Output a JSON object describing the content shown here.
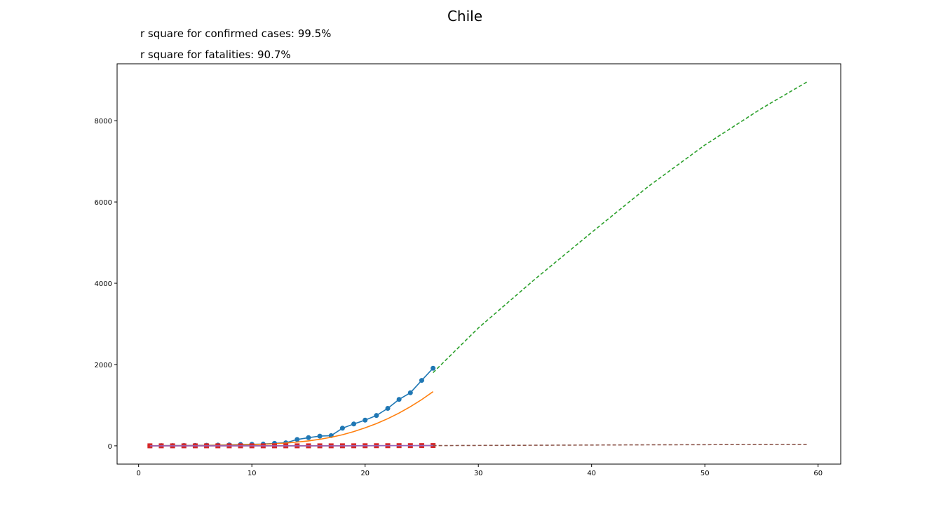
{
  "chart_data": {
    "type": "line",
    "title": "Chile",
    "annotations": [
      "r square for confirmed cases: 99.5%",
      "r square for fatalities: 90.7%"
    ],
    "xlabel": "",
    "ylabel": "",
    "xlim": [
      -1.9,
      62
    ],
    "ylim": [
      -450,
      9400
    ],
    "xticks": [
      0,
      10,
      20,
      30,
      40,
      50,
      60
    ],
    "yticks": [
      0,
      2000,
      4000,
      6000,
      8000
    ],
    "grid": false,
    "series": [
      {
        "role": "confirmed-observed",
        "color": "#1f77b4",
        "marker": "circle",
        "x": [
          1,
          2,
          3,
          4,
          5,
          6,
          7,
          8,
          9,
          10,
          11,
          12,
          13,
          14,
          15,
          16,
          17,
          18,
          19,
          20,
          21,
          22,
          23,
          24,
          25,
          26
        ],
        "y": [
          1,
          4,
          5,
          7,
          10,
          13,
          17,
          23,
          33,
          37,
          43,
          61,
          75,
          156,
          201,
          238,
          250,
          434,
          537,
          632,
          746,
          922,
          1142,
          1306,
          1610,
          1909
        ]
      },
      {
        "role": "confirmed-fit",
        "color": "#ff7f0e",
        "style": "solid",
        "x": [
          1,
          2,
          3,
          4,
          5,
          6,
          7,
          8,
          9,
          10,
          11,
          12,
          13,
          14,
          15,
          16,
          17,
          18,
          19,
          20,
          21,
          22,
          23,
          24,
          25,
          26
        ],
        "y": [
          2,
          3,
          4,
          5,
          7,
          9,
          12,
          16,
          21,
          28,
          38,
          51,
          68,
          91,
          121,
          160,
          210,
          273,
          350,
          441,
          547,
          668,
          806,
          962,
          1137,
          1332
        ]
      },
      {
        "role": "confirmed-projection",
        "color": "#2ca02c",
        "style": "dashed",
        "x": [
          26,
          30,
          35,
          40,
          45,
          50,
          55,
          59
        ],
        "y": [
          1800,
          2900,
          4100,
          5250,
          6380,
          7400,
          8300,
          8950
        ]
      },
      {
        "role": "fatalities-observed",
        "color": "#d62728",
        "marker": "square",
        "x": [
          1,
          2,
          3,
          4,
          5,
          6,
          7,
          8,
          9,
          10,
          11,
          12,
          13,
          14,
          15,
          16,
          17,
          18,
          19,
          20,
          21,
          22,
          23,
          24,
          25,
          26
        ],
        "y": [
          0,
          0,
          0,
          0,
          0,
          0,
          0,
          0,
          0,
          0,
          0,
          0,
          0,
          0,
          0,
          0,
          0,
          1,
          1,
          2,
          3,
          3,
          4,
          4,
          5,
          6
        ]
      },
      {
        "role": "fatalities-fit",
        "color": "#9467bd",
        "style": "solid",
        "x": [
          1,
          5,
          10,
          15,
          18,
          20,
          22,
          24,
          26
        ],
        "y": [
          0,
          0,
          0,
          0,
          1,
          2,
          3,
          4,
          6
        ]
      },
      {
        "role": "fatalities-projection",
        "color": "#8c564b",
        "style": "dashed",
        "x": [
          26,
          35,
          45,
          59
        ],
        "y": [
          6,
          14,
          24,
          35
        ]
      }
    ]
  }
}
